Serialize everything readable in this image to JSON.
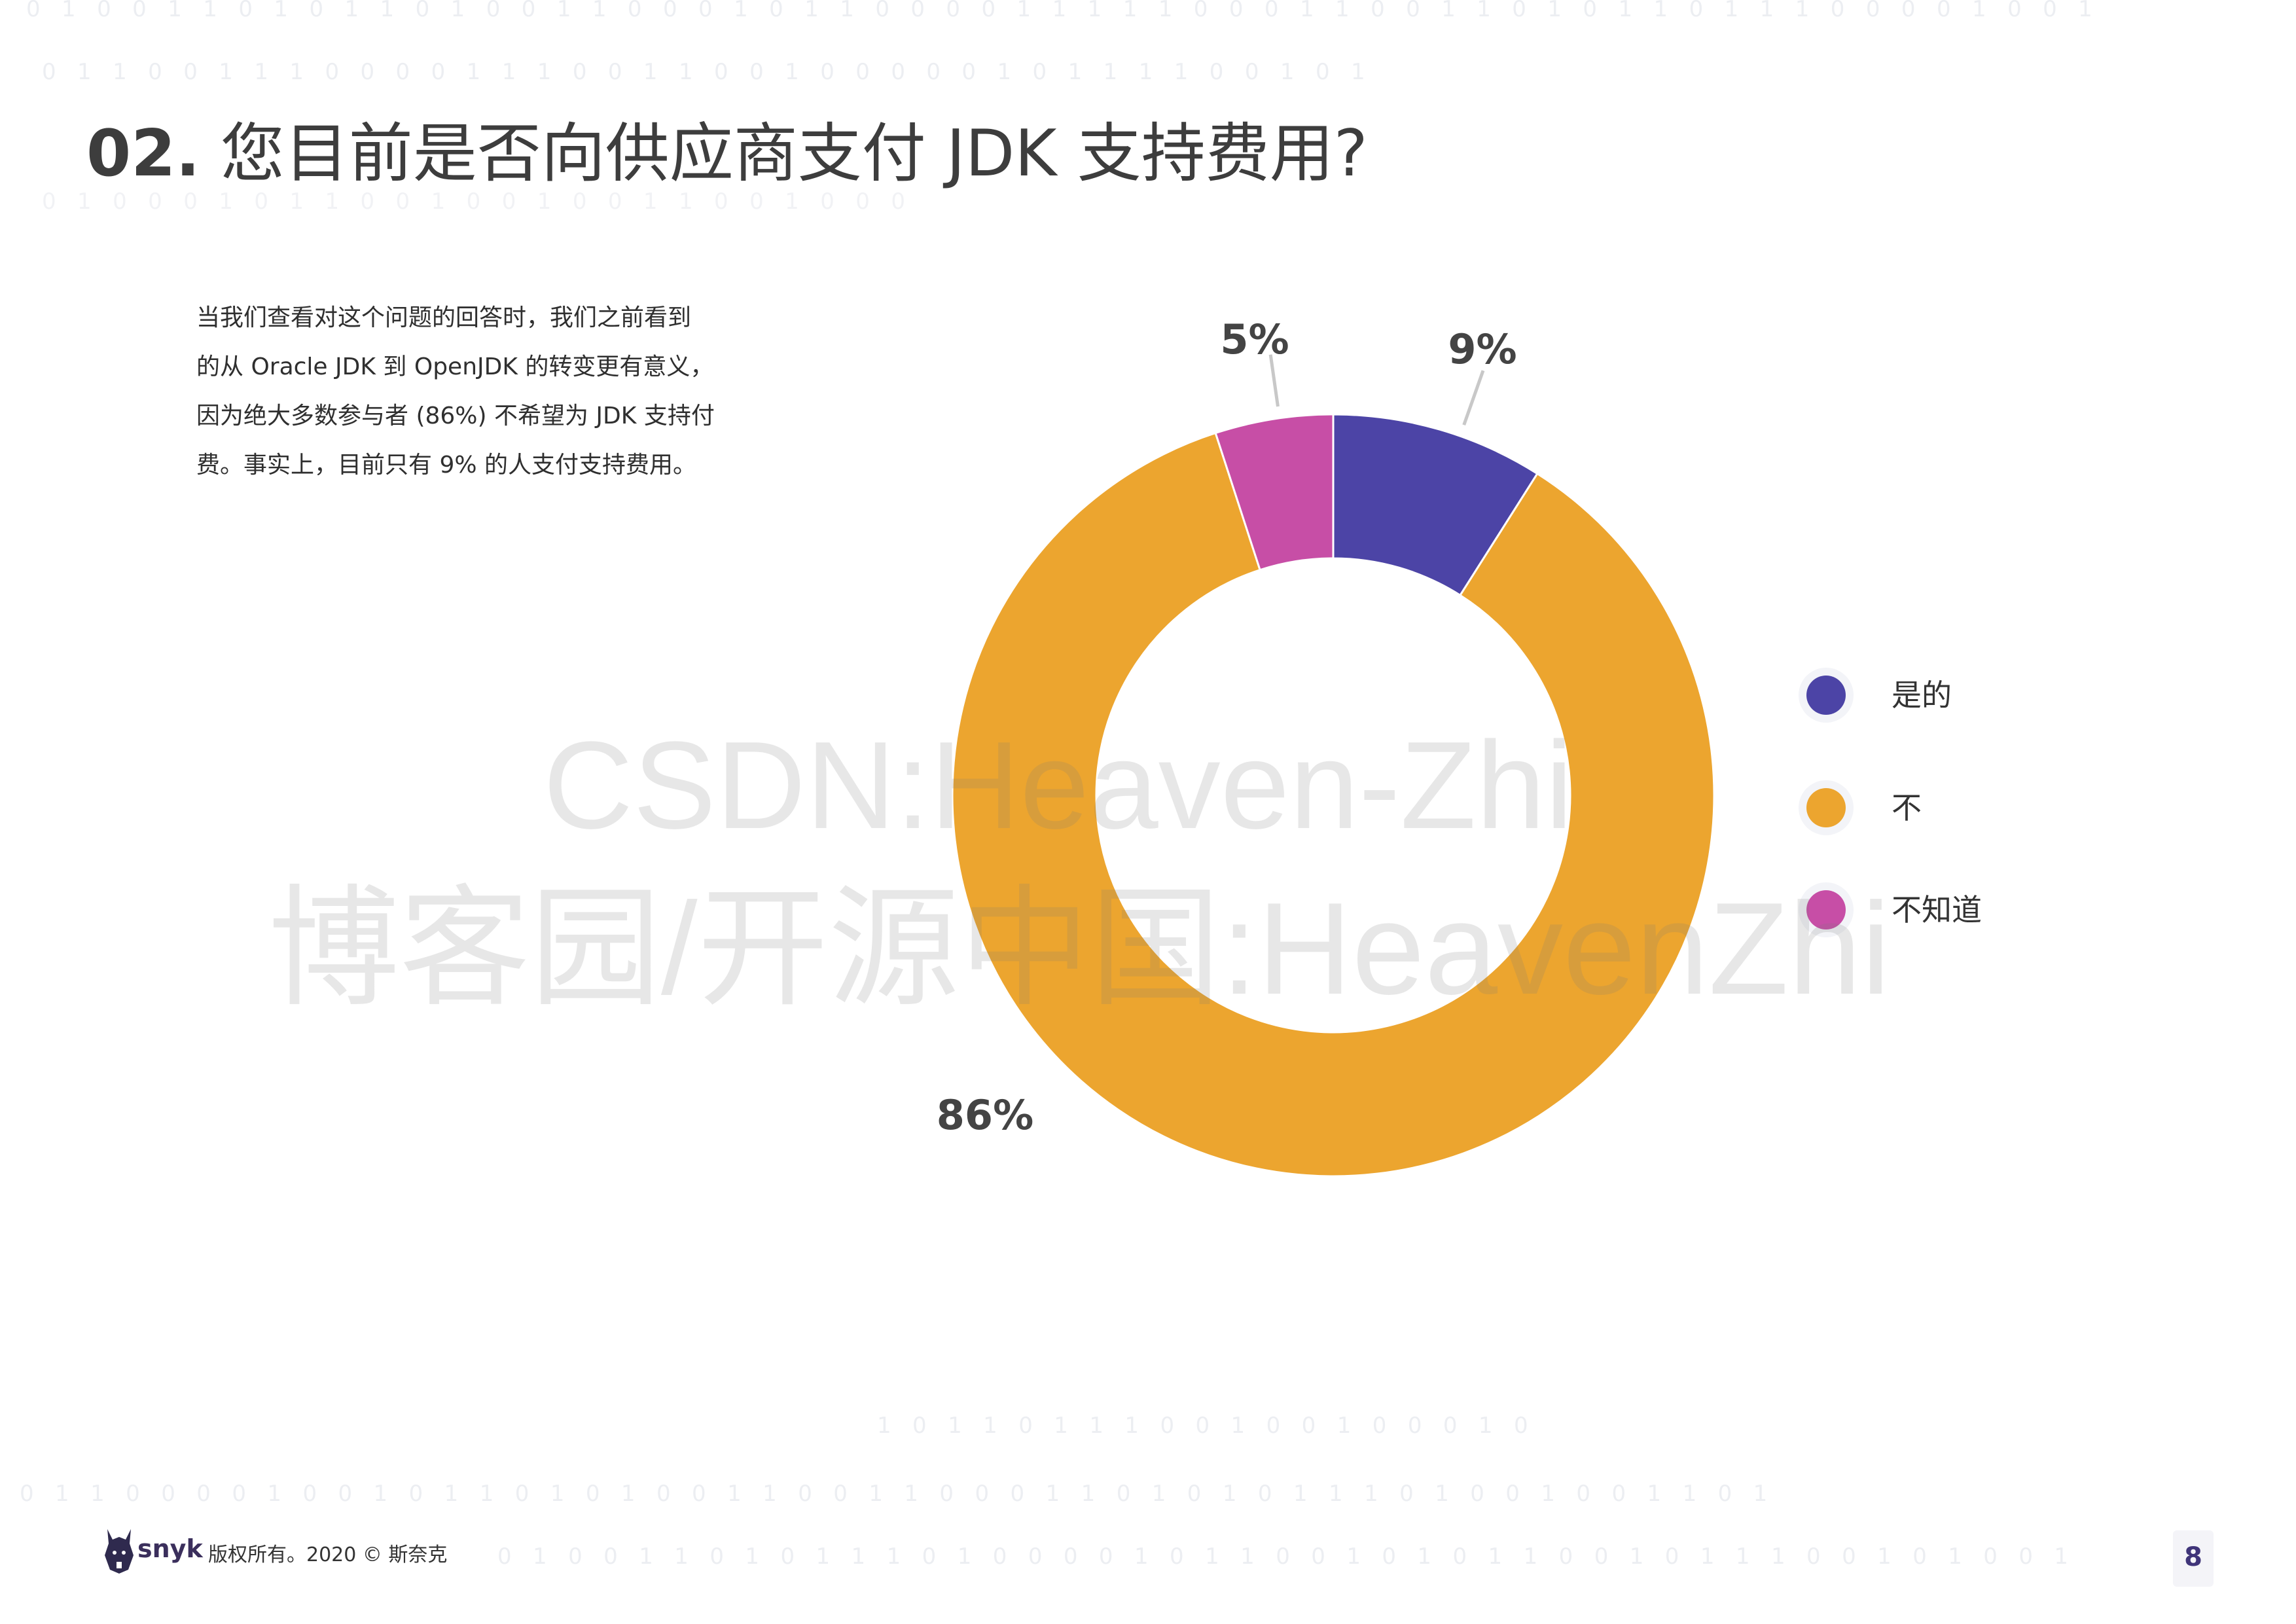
{
  "title": {
    "number": "02.",
    "text": "您目前是否向供应商支付 JDK 支持费用?"
  },
  "body_lines": [
    "当我们查看对这个问题的回答时，我们之前看到",
    "的从 Oracle JDK 到 OpenJDK 的转变更有意义，",
    "因为绝大多数参与者 (86%) 不希望为 JDK 支持付",
    "费。事实上，目前只有 9% 的人支付支持费用。"
  ],
  "chart_data": {
    "type": "pie",
    "variant": "donut",
    "categories": [
      "是的",
      "不",
      "不知道"
    ],
    "values": [
      9,
      86,
      5
    ],
    "value_labels": [
      "9%",
      "86%",
      "5%"
    ],
    "colors": [
      "#4c44a6",
      "#eca52f",
      "#c74ea6"
    ],
    "start_angle_deg": 0,
    "direction": "clockwise",
    "legend": "right"
  },
  "watermark": {
    "line1": "CSDN:Heaven-Zhi",
    "line2": "博客园/开源中国:HeavenZhi"
  },
  "footer": {
    "brand": "snyk",
    "copyright": "版权所有。2020 © 斯奈克",
    "page_number": "8"
  },
  "background_binary_rows": [
    "0   1   0   0   1   1   0   1   0   1   1   0   1   0   0   1   1   0   0   0   1   0   1   1   0   0   0   0   1   1   1   1   1   0   0   0   1   1   0   0   1   1   0   1   0   1   1   0   1   1   1   0   0   0   0   1   0   0   1",
    "0   1   1   0   0   1   1   1   0   0   0   0   1   1   1   0   0   1   1   0   0   1   0   0   0   0   0   1   0   1   1   1   1   0   0   1   0   1",
    "0   1   0   0   0   1   0   1   1   0   0   1   0   0   1   0   0   1   1   0   0   1   0   0   0",
    "1   0   1   1   0   1   1   1   0   0   1   0   0   1   0   0   0   1   0",
    "0   1   1   0   0   0   0   1   0   0   1   0   1   1   0   1   0   1   0   0   1   1   0   0   1   1   0   0   0   1   1   0   1   0   1   0   1   1   1   0   1   0   0   1   0   0   1   1   0   1",
    "0   1   0   0   1   1   0   1   0   1   1   1   0   1   0   0   0   0   1   0   1   1   0   0   1   0   1   0   1   1   0   0   1   0   1   1   1   0   0   1   0   1   0   0   1"
  ]
}
